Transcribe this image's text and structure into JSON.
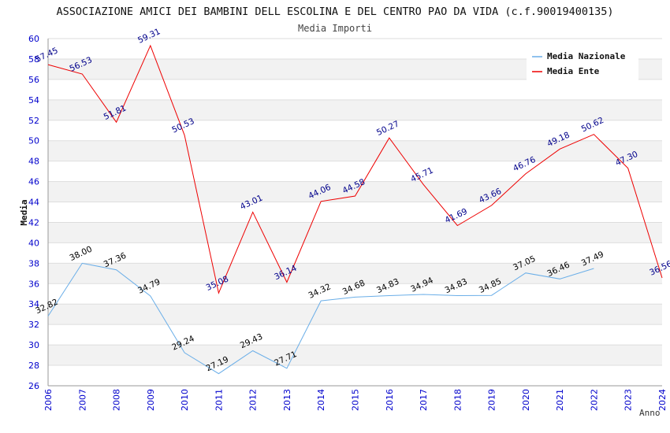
{
  "chart_data": {
    "type": "line",
    "title": "ASSOCIAZIONE AMICI DEI BAMBINI DELL ESCOLINA E DEL CENTRO PAO DA VIDA (c.f.90019400135)",
    "subtitle": "Media Importi",
    "xlabel": "Anno",
    "ylabel": "Media",
    "ylim": [
      26,
      60
    ],
    "yticks": [
      "26",
      "28",
      "30",
      "32",
      "34",
      "36",
      "38",
      "40",
      "42",
      "44",
      "46",
      "48",
      "50",
      "52",
      "54",
      "56",
      "58",
      "60"
    ],
    "x": [
      "2006",
      "2007",
      "2008",
      "2009",
      "2010",
      "2011",
      "2012",
      "2013",
      "2014",
      "2015",
      "2016",
      "2017",
      "2018",
      "2019",
      "2020",
      "2021",
      "2022",
      "2023",
      "2024"
    ],
    "grid": true,
    "legend_position": "top-right",
    "series": [
      {
        "name": "Media Nazionale",
        "color": "#6aaee8",
        "label_color": "#000000",
        "values": [
          32.82,
          38.0,
          37.36,
          34.79,
          29.24,
          27.19,
          29.43,
          27.71,
          34.32,
          34.68,
          34.83,
          34.94,
          34.83,
          34.85,
          37.05,
          36.46,
          37.49,
          null,
          null
        ],
        "labels": [
          "32.82",
          "38.00",
          "37.36",
          "34.79",
          "29.24",
          "27.19",
          "29.43",
          "27.71",
          "34.32",
          "34.68",
          "34.83",
          "34.94",
          "34.83",
          "34.85",
          "37.05",
          "36.46",
          "37.49",
          null,
          null
        ]
      },
      {
        "name": "Media Ente",
        "color": "#ee0000",
        "label_color": "#00008b",
        "values": [
          57.45,
          56.53,
          51.81,
          59.31,
          50.53,
          35.08,
          43.01,
          36.14,
          44.06,
          44.58,
          50.27,
          45.71,
          41.69,
          43.66,
          46.76,
          49.18,
          50.62,
          47.3,
          36.56
        ],
        "labels": [
          "57.45",
          "56.53",
          "51.81",
          "59.31",
          "50.53",
          "35.08",
          "43.01",
          "36.14",
          "44.06",
          "44.58",
          "50.27",
          "45.71",
          "41.69",
          "43.66",
          "46.76",
          "49.18",
          "50.62",
          "47.30",
          "36.56"
        ]
      }
    ]
  }
}
